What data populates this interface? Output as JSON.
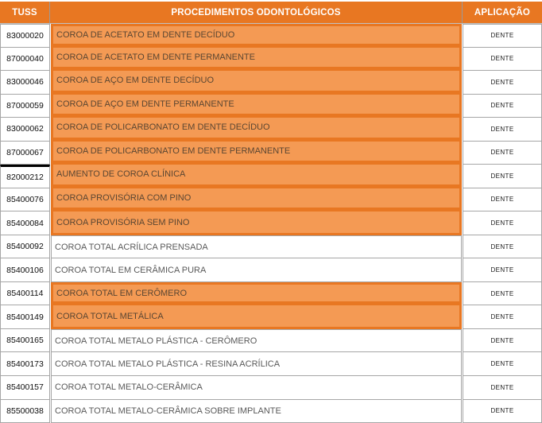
{
  "table": {
    "columns": [
      {
        "key": "tuss",
        "label": "TUSS"
      },
      {
        "key": "procedure",
        "label": "PROCEDIMENTOS ODONTOLÓGICOS"
      },
      {
        "key": "aplicacao",
        "label": "APLICAÇÃO"
      }
    ],
    "rows": [
      {
        "tuss": "83000020",
        "procedure": "COROA DE ACETATO EM DENTE DECÍDUO",
        "aplicacao": "DENTE",
        "highlighted": true
      },
      {
        "tuss": "87000040",
        "procedure": "COROA DE ACETATO EM DENTE PERMANENTE",
        "aplicacao": "DENTE",
        "highlighted": true
      },
      {
        "tuss": "83000046",
        "procedure": "COROA DE AÇO EM DENTE DECÍDUO",
        "aplicacao": "DENTE",
        "highlighted": true
      },
      {
        "tuss": "87000059",
        "procedure": "COROA DE AÇO EM DENTE PERMANENTE",
        "aplicacao": "DENTE",
        "highlighted": true
      },
      {
        "tuss": "83000062",
        "procedure": "COROA DE POLICARBONATO EM DENTE DECÍDUO",
        "aplicacao": "DENTE",
        "highlighted": true
      },
      {
        "tuss": "87000067",
        "procedure": "COROA DE POLICARBONATO EM DENTE PERMANENTE",
        "aplicacao": "DENTE",
        "highlighted": true
      },
      {
        "tuss": "82000212",
        "procedure": "AUMENTO DE COROA CLÍNICA",
        "aplicacao": "DENTE",
        "highlighted": true,
        "thick_black_top_border": true
      },
      {
        "tuss": "85400076",
        "procedure": "COROA PROVISÓRIA COM PINO",
        "aplicacao": "DENTE",
        "highlighted": true
      },
      {
        "tuss": "85400084",
        "procedure": "COROA PROVISÓRIA SEM PINO",
        "aplicacao": "DENTE",
        "highlighted": true
      },
      {
        "tuss": "85400092",
        "procedure": "COROA TOTAL ACRÍLICA PRENSADA",
        "aplicacao": "DENTE",
        "highlighted": false
      },
      {
        "tuss": "85400106",
        "procedure": "COROA TOTAL EM CERÂMICA PURA",
        "aplicacao": "DENTE",
        "highlighted": false
      },
      {
        "tuss": "85400114",
        "procedure": "COROA TOTAL EM CERÔMERO",
        "aplicacao": "DENTE",
        "highlighted": true
      },
      {
        "tuss": "85400149",
        "procedure": "COROA TOTAL METÁLICA",
        "aplicacao": "DENTE",
        "highlighted": true
      },
      {
        "tuss": "85400165",
        "procedure": "COROA TOTAL METALO PLÁSTICA - CERÔMERO",
        "aplicacao": "DENTE",
        "highlighted": false
      },
      {
        "tuss": "85400173",
        "procedure": "COROA TOTAL METALO PLÁSTICA - RESINA ACRÍLICA",
        "aplicacao": "DENTE",
        "highlighted": false
      },
      {
        "tuss": "85400157",
        "procedure": "COROA TOTAL METALO-CERÂMICA",
        "aplicacao": "DENTE",
        "highlighted": false
      },
      {
        "tuss": "85500038",
        "procedure": "COROA TOTAL METALO-CERÂMICA SOBRE IMPLANTE",
        "aplicacao": "DENTE",
        "highlighted": false
      }
    ]
  },
  "colors": {
    "header_bg": "#E87722",
    "header_text": "#FFFFFF",
    "highlight_fill": "#F49A54",
    "highlight_border": "#E87722",
    "grid_border": "#A6A6A6",
    "procedure_text": "#595959",
    "code_text": "#0D0D0D",
    "black_divider": "#000000"
  }
}
